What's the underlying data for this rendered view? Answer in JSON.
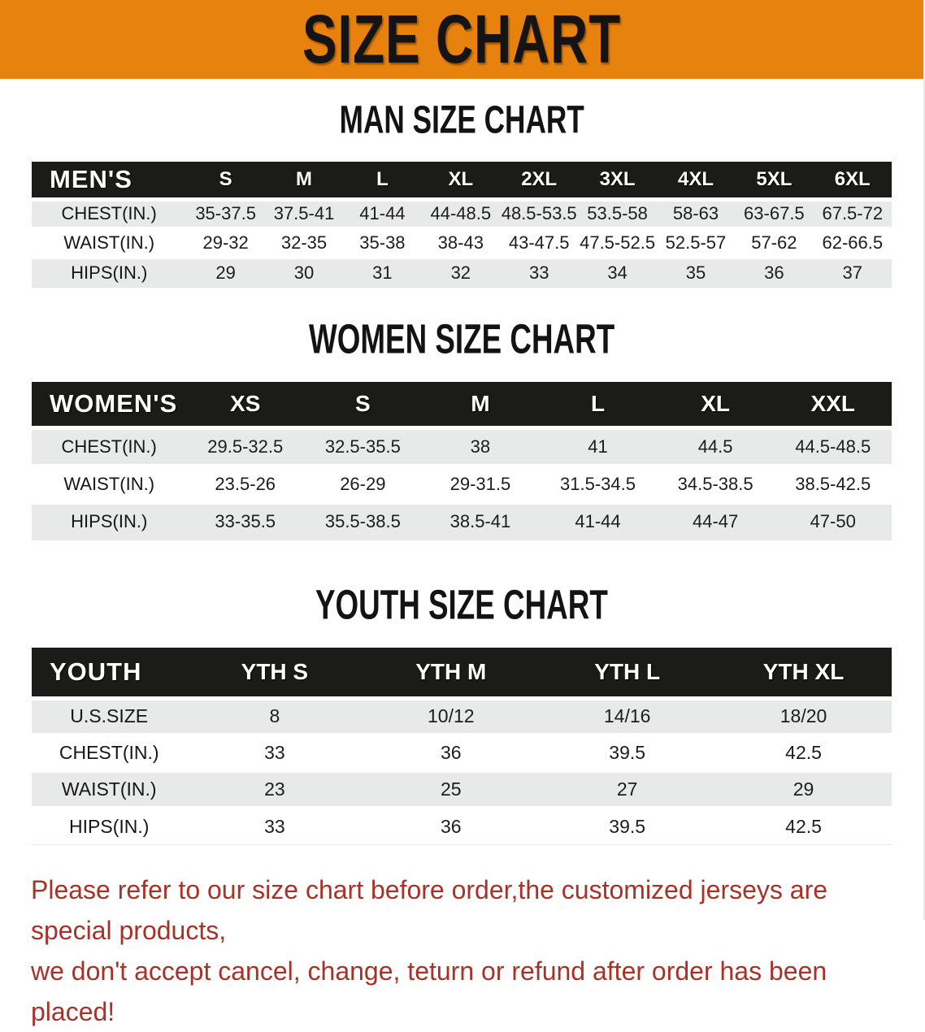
{
  "banner": {
    "title": "SIZE CHART"
  },
  "sections": [
    {
      "heading": "MAN SIZE CHART",
      "table": {
        "header": [
          "MEN'S",
          "S",
          "M",
          "L",
          "XL",
          "2XL",
          "3XL",
          "4XL",
          "5XL",
          "6XL"
        ],
        "rows": [
          {
            "label": "CHEST(IN.)",
            "shaded": true,
            "values": [
              "35-37.5",
              "37.5-41",
              "41-44",
              "44-48.5",
              "48.5-53.5",
              "53.5-58",
              "58-63",
              "63-67.5",
              "67.5-72"
            ]
          },
          {
            "label": "WAIST(IN.)",
            "shaded": false,
            "values": [
              "29-32",
              "32-35",
              "35-38",
              "38-43",
              "43-47.5",
              "47.5-52.5",
              "52.5-57",
              "57-62",
              "62-66.5"
            ]
          },
          {
            "label": "HIPS(IN.)",
            "shaded": true,
            "values": [
              "29",
              "30",
              "31",
              "32",
              "33",
              "34",
              "35",
              "36",
              "37"
            ]
          }
        ]
      }
    },
    {
      "heading": "WOMEN SIZE CHART",
      "table": {
        "header": [
          "WOMEN'S",
          "XS",
          "S",
          "M",
          "L",
          "XL",
          "XXL"
        ],
        "rows": [
          {
            "label": "CHEST(IN.)",
            "shaded": true,
            "values": [
              "29.5-32.5",
              "32.5-35.5",
              "38",
              "41",
              "44.5",
              "44.5-48.5"
            ]
          },
          {
            "label": "WAIST(IN.)",
            "shaded": false,
            "values": [
              "23.5-26",
              "26-29",
              "29-31.5",
              "31.5-34.5",
              "34.5-38.5",
              "38.5-42.5"
            ]
          },
          {
            "label": "HIPS(IN.)",
            "shaded": true,
            "values": [
              "33-35.5",
              "35.5-38.5",
              "38.5-41",
              "41-44",
              "44-47",
              "47-50"
            ]
          }
        ]
      }
    },
    {
      "heading": "YOUTH SIZE CHART",
      "table": {
        "header": [
          "YOUTH",
          "YTH S",
          "YTH M",
          "YTH L",
          "YTH XL"
        ],
        "rows": [
          {
            "label": "U.S.SIZE",
            "shaded": true,
            "values": [
              "8",
              "10/12",
              "14/16",
              "18/20"
            ]
          },
          {
            "label": "CHEST(IN.)",
            "shaded": false,
            "values": [
              "33",
              "36",
              "39.5",
              "42.5"
            ]
          },
          {
            "label": "WAIST(IN.)",
            "shaded": true,
            "values": [
              "23",
              "25",
              "27",
              "29"
            ]
          },
          {
            "label": "HIPS(IN.)",
            "shaded": false,
            "values": [
              "33",
              "36",
              "39.5",
              "42.5"
            ]
          }
        ]
      }
    }
  ],
  "footer": {
    "line1": "Please refer to our size chart before order,the customized jerseys are special products,",
    "line2": "we don't accept cancel, change, teturn or refund after order has been placed!"
  },
  "colors": {
    "banner_bg": "#E8820E",
    "header_bar": "#1B1B17",
    "shaded_row": "#E8E9E9",
    "footer_text": "#A93228"
  }
}
